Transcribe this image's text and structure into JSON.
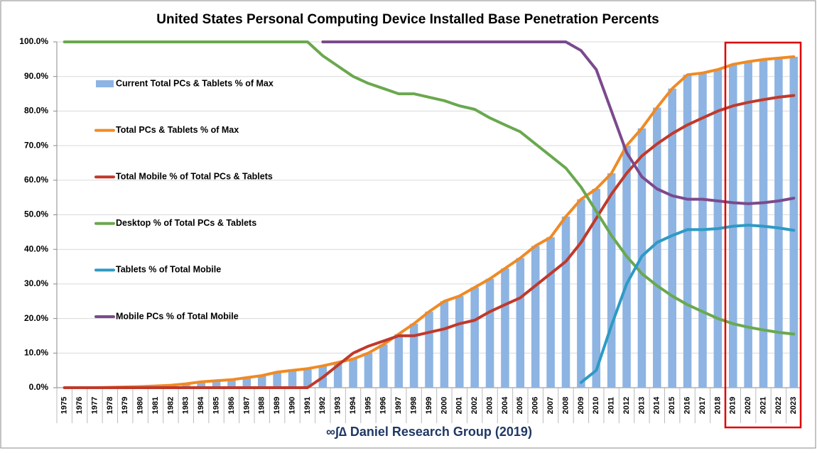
{
  "chart_data": {
    "type": "bar_line",
    "title": "United States Personal Computing Device Installed Base Penetration Percents",
    "footer": "∞∫∆ Daniel Research Group (2019)",
    "categories": [
      "1975",
      "1976",
      "1977",
      "1978",
      "1979",
      "1980",
      "1981",
      "1982",
      "1983",
      "1984",
      "1985",
      "1986",
      "1987",
      "1988",
      "1989",
      "1990",
      "1991",
      "1992",
      "1993",
      "1994",
      "1995",
      "1996",
      "1997",
      "1998",
      "1999",
      "2000",
      "2001",
      "2002",
      "2003",
      "2004",
      "2005",
      "2006",
      "2007",
      "2008",
      "2009",
      "2010",
      "2011",
      "2012",
      "2013",
      "2014",
      "2015",
      "2016",
      "2017",
      "2018",
      "2019",
      "2020",
      "2021",
      "2022",
      "2023"
    ],
    "ylim": [
      0,
      100
    ],
    "yticks": [
      {
        "value": 0,
        "label": "0.0%"
      },
      {
        "value": 10,
        "label": "10.0%"
      },
      {
        "value": 20,
        "label": "20.0%"
      },
      {
        "value": 30,
        "label": "30.0%"
      },
      {
        "value": 40,
        "label": "40.0%"
      },
      {
        "value": 50,
        "label": "50.0%"
      },
      {
        "value": 60,
        "label": "60.0%"
      },
      {
        "value": 70,
        "label": "70.0%"
      },
      {
        "value": 80,
        "label": "80.0%"
      },
      {
        "value": 90,
        "label": "90.0%"
      },
      {
        "value": 100,
        "label": "100.0%"
      }
    ],
    "grid": true,
    "legend": "left",
    "series": [
      {
        "name": "Current Total PCs & Tablets % of Max",
        "kind": "bar",
        "color": "#8db4e2",
        "values": [
          0,
          0,
          0,
          0.1,
          0.2,
          0.3,
          0.5,
          0.7,
          1.1,
          1.7,
          2.0,
          2.3,
          2.9,
          3.5,
          4.5,
          5.0,
          5.5,
          6.3,
          7.3,
          8.3,
          10,
          12.5,
          15.5,
          18.5,
          22,
          25,
          26.5,
          29,
          31.5,
          34.5,
          37.5,
          41,
          43.5,
          49.5,
          54.5,
          57.5,
          62,
          70,
          75,
          81,
          86.5,
          90.5,
          91,
          92,
          93.5,
          94.3,
          94.9,
          95.3,
          95.7
        ]
      },
      {
        "name": "Total PCs & Tablets % of Max",
        "kind": "line",
        "color": "#f08a24",
        "values": [
          0,
          0,
          0,
          0.1,
          0.2,
          0.3,
          0.5,
          0.7,
          1.1,
          1.7,
          2.0,
          2.3,
          2.9,
          3.5,
          4.5,
          5.0,
          5.5,
          6.3,
          7.3,
          8.3,
          10,
          12.5,
          15.5,
          18.5,
          22,
          25,
          26.5,
          29,
          31.5,
          34.5,
          37.5,
          41,
          43.5,
          49.5,
          54.5,
          57.5,
          62,
          70,
          75,
          81,
          86.5,
          90.5,
          91,
          92,
          93.5,
          94.3,
          94.9,
          95.3,
          95.7
        ]
      },
      {
        "name": "Total Mobile % of Total PCs & Tablets",
        "kind": "line",
        "color": "#c0392b",
        "values": [
          0,
          0,
          0,
          0,
          0,
          0,
          0,
          0,
          0,
          0,
          0,
          0,
          0,
          0,
          0,
          0,
          0,
          3,
          6.5,
          10,
          12,
          13.5,
          15,
          15,
          16,
          17,
          18.5,
          19.5,
          22,
          24,
          26,
          29.5,
          33,
          36.5,
          42,
          49,
          56,
          62,
          67,
          70.5,
          73.5,
          76,
          78,
          80,
          81.5,
          82.5,
          83.3,
          84,
          84.5
        ]
      },
      {
        "name": "Desktop % of Total PCs & Tablets",
        "kind": "line",
        "color": "#6aa84f",
        "values": [
          100,
          100,
          100,
          100,
          100,
          100,
          100,
          100,
          100,
          100,
          100,
          100,
          100,
          100,
          100,
          100,
          100,
          96,
          93,
          90,
          88,
          86.5,
          85,
          85,
          84,
          83,
          81.5,
          80.5,
          78,
          76,
          74,
          70.5,
          67,
          63.5,
          58,
          51,
          44,
          38,
          33,
          29.5,
          26.5,
          24,
          22,
          20,
          18.5,
          17.5,
          16.7,
          16,
          15.5
        ]
      },
      {
        "name": "Tablets % of Total Mobile",
        "kind": "line",
        "color": "#2e9ac4",
        "values": [
          null,
          null,
          null,
          null,
          null,
          null,
          null,
          null,
          null,
          null,
          null,
          null,
          null,
          null,
          null,
          null,
          null,
          null,
          null,
          null,
          null,
          null,
          null,
          null,
          null,
          null,
          null,
          null,
          null,
          null,
          null,
          null,
          null,
          null,
          1.5,
          5,
          18,
          30,
          38,
          42,
          44,
          45.7,
          45.7,
          46,
          46.7,
          47,
          46.7,
          46.2,
          45.5
        ]
      },
      {
        "name": "Mobile PCs % of Total Mobile",
        "kind": "line",
        "color": "#7b4a8c",
        "values": [
          null,
          null,
          null,
          null,
          null,
          null,
          null,
          null,
          null,
          null,
          null,
          null,
          null,
          null,
          null,
          null,
          null,
          100,
          100,
          100,
          100,
          100,
          100,
          100,
          100,
          100,
          100,
          100,
          100,
          100,
          100,
          100,
          100,
          100,
          97.5,
          92,
          80,
          68,
          61,
          57.5,
          55.5,
          54.5,
          54.5,
          54,
          53.5,
          53.2,
          53.5,
          54,
          54.8
        ]
      }
    ]
  }
}
